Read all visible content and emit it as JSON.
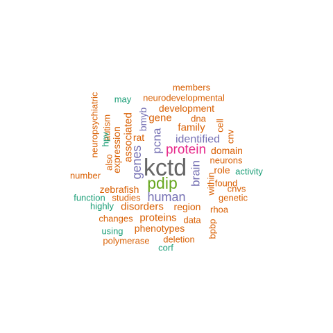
{
  "chart_data": {
    "type": "wordcloud",
    "colors": {
      "orange": "#D95F02",
      "teal": "#1B9E77",
      "purple": "#7570B3",
      "magenta": "#E7298A",
      "green": "#66A61E",
      "gray": "#666666"
    },
    "words": [
      {
        "text": "kctd",
        "color": "gray",
        "rotated": false
      },
      {
        "text": "protein",
        "color": "magenta",
        "rotated": false
      },
      {
        "text": "pdip",
        "color": "green",
        "rotated": false
      },
      {
        "text": "human",
        "color": "purple",
        "rotated": false
      },
      {
        "text": "brain",
        "color": "purple",
        "rotated": true
      },
      {
        "text": "genes",
        "color": "purple",
        "rotated": true
      },
      {
        "text": "pcna",
        "color": "purple",
        "rotated": true
      },
      {
        "text": "identified",
        "color": "purple",
        "rotated": false
      },
      {
        "text": "members",
        "color": "orange",
        "rotated": false
      },
      {
        "text": "may",
        "color": "teal",
        "rotated": false
      },
      {
        "text": "neurodevelopmental",
        "color": "orange",
        "rotated": false
      },
      {
        "text": "neuropsychiatric",
        "color": "orange",
        "rotated": true
      },
      {
        "text": "development",
        "color": "orange",
        "rotated": false
      },
      {
        "text": "gene",
        "color": "orange",
        "rotated": false
      },
      {
        "text": "dna",
        "color": "orange",
        "rotated": false
      },
      {
        "text": "autism",
        "color": "orange",
        "rotated": true
      },
      {
        "text": "bmyb",
        "color": "purple",
        "rotated": true
      },
      {
        "text": "family",
        "color": "orange",
        "rotated": false
      },
      {
        "text": "cell",
        "color": "orange",
        "rotated": true
      },
      {
        "text": "rat",
        "color": "orange",
        "rotated": false
      },
      {
        "text": "associated",
        "color": "orange",
        "rotated": true
      },
      {
        "text": "expression",
        "color": "orange",
        "rotated": true
      },
      {
        "text": "hpv",
        "color": "teal",
        "rotated": true
      },
      {
        "text": "cnv",
        "color": "orange",
        "rotated": true
      },
      {
        "text": "domain",
        "color": "orange",
        "rotated": false
      },
      {
        "text": "neurons",
        "color": "orange",
        "rotated": false
      },
      {
        "text": "also",
        "color": "orange",
        "rotated": true
      },
      {
        "text": "role",
        "color": "orange",
        "rotated": false
      },
      {
        "text": "activity",
        "color": "teal",
        "rotated": false
      },
      {
        "text": "number",
        "color": "orange",
        "rotated": false
      },
      {
        "text": "within",
        "color": "orange",
        "rotated": true
      },
      {
        "text": "found",
        "color": "orange",
        "rotated": false
      },
      {
        "text": "zebrafish",
        "color": "orange",
        "rotated": false
      },
      {
        "text": "cnvs",
        "color": "orange",
        "rotated": false
      },
      {
        "text": "function",
        "color": "teal",
        "rotated": false
      },
      {
        "text": "studies",
        "color": "orange",
        "rotated": false
      },
      {
        "text": "genetic",
        "color": "orange",
        "rotated": false
      },
      {
        "text": "highly",
        "color": "teal",
        "rotated": false
      },
      {
        "text": "disorders",
        "color": "orange",
        "rotated": false
      },
      {
        "text": "region",
        "color": "orange",
        "rotated": false
      },
      {
        "text": "rhoa",
        "color": "orange",
        "rotated": false
      },
      {
        "text": "changes",
        "color": "orange",
        "rotated": false
      },
      {
        "text": "proteins",
        "color": "orange",
        "rotated": false
      },
      {
        "text": "data",
        "color": "orange",
        "rotated": false
      },
      {
        "text": "bpbp",
        "color": "orange",
        "rotated": true
      },
      {
        "text": "using",
        "color": "teal",
        "rotated": false
      },
      {
        "text": "phenotypes",
        "color": "orange",
        "rotated": false
      },
      {
        "text": "polymerase",
        "color": "orange",
        "rotated": false
      },
      {
        "text": "deletion",
        "color": "orange",
        "rotated": false
      },
      {
        "text": "corf",
        "color": "teal",
        "rotated": false
      }
    ]
  }
}
